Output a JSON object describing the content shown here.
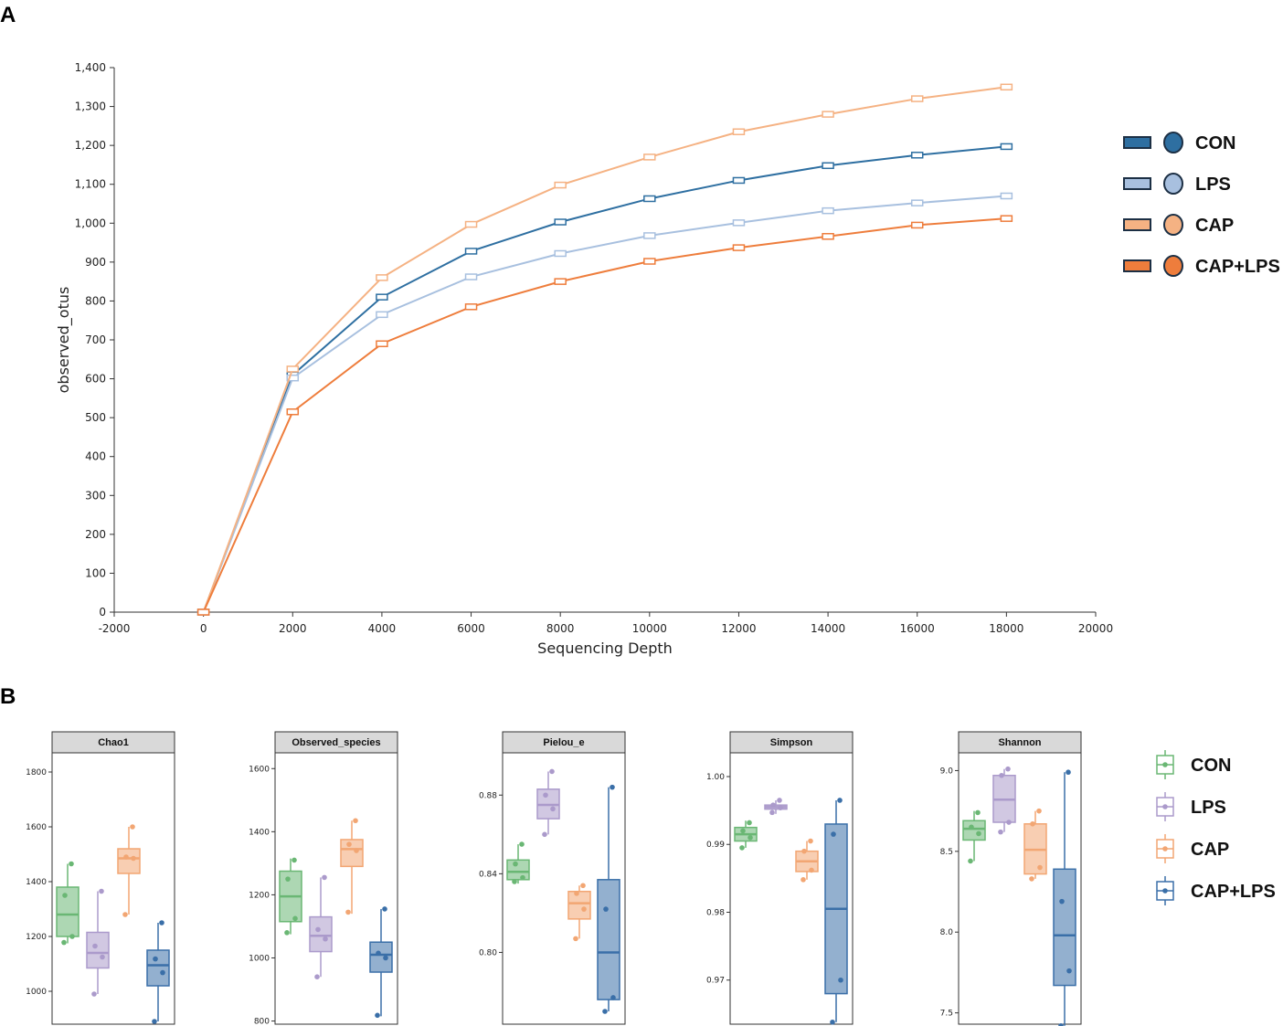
{
  "panel_a_label": "A",
  "panel_b_label": "B",
  "colors": {
    "CON": "#2e6fa1",
    "LPS": "#a8c0df",
    "CAP": "#f5b283",
    "CAP+LPS": "#ee7d3c"
  },
  "box_colors": {
    "CON": "#6ab774",
    "LPS": "#ab9acb",
    "CAP": "#f2a673",
    "CAP+LPS": "#3a6fa8"
  },
  "chart_data": [
    {
      "type": "line",
      "title": "",
      "xlabel": "Sequencing Depth",
      "ylabel": "observed_otus",
      "xlim": [
        -2000,
        20000
      ],
      "ylim": [
        0,
        1400
      ],
      "x_ticks": [
        -2000,
        0,
        2000,
        4000,
        6000,
        8000,
        10000,
        12000,
        14000,
        16000,
        18000,
        20000
      ],
      "x_tick_labels": [
        "-2000",
        "0",
        "2000",
        "4000",
        "6000",
        "8000",
        "10000",
        "12000",
        "14000",
        "16000",
        "18000",
        "20000"
      ],
      "y_ticks": [
        0,
        100,
        200,
        300,
        400,
        500,
        600,
        700,
        800,
        900,
        1000,
        1100,
        1200,
        1300,
        1400
      ],
      "y_tick_labels": [
        "0",
        "100",
        "200",
        "300",
        "400",
        "500",
        "600",
        "700",
        "800",
        "900",
        "1,000",
        "1,100",
        "1,200",
        "1,300",
        "1,400"
      ],
      "x": [
        0,
        2000,
        4000,
        6000,
        8000,
        10000,
        12000,
        14000,
        16000,
        18000
      ],
      "series": [
        {
          "name": "CON",
          "values": [
            0,
            610,
            810,
            928,
            1003,
            1063,
            1110,
            1148,
            1175,
            1197
          ]
        },
        {
          "name": "LPS",
          "values": [
            0,
            602,
            765,
            862,
            922,
            968,
            1001,
            1032,
            1052,
            1070
          ]
        },
        {
          "name": "CAP",
          "values": [
            0,
            625,
            860,
            997,
            1098,
            1170,
            1235,
            1280,
            1320,
            1350
          ]
        },
        {
          "name": "CAP+LPS",
          "values": [
            0,
            515,
            690,
            785,
            850,
            902,
            937,
            966,
            995,
            1012
          ]
        }
      ],
      "legend": [
        "CON",
        "LPS",
        "CAP",
        "CAP+LPS"
      ],
      "legend_position": "right"
    },
    {
      "type": "box",
      "facets": [
        {
          "title": "Chao1",
          "ylim": [
            880,
            1870
          ],
          "y_ticks": [
            1000,
            1200,
            1400,
            1600,
            1800
          ],
          "y_tick_labels": [
            "1000",
            "1200",
            "1400",
            "1600",
            "1800"
          ],
          "groups": [
            {
              "name": "CON",
              "min": 1175,
              "q1": 1200,
              "median": 1280,
              "q3": 1380,
              "max": 1465,
              "points": [
                1465,
                1350,
                1200,
                1178
              ]
            },
            {
              "name": "LPS",
              "min": 990,
              "q1": 1085,
              "median": 1140,
              "q3": 1215,
              "max": 1365,
              "points": [
                1365,
                1165,
                1125,
                990
              ]
            },
            {
              "name": "CAP",
              "min": 1280,
              "q1": 1430,
              "median": 1485,
              "q3": 1520,
              "max": 1600,
              "points": [
                1600,
                1490,
                1485,
                1280
              ]
            },
            {
              "name": "CAP+LPS",
              "min": 890,
              "q1": 1020,
              "median": 1095,
              "q3": 1150,
              "max": 1250,
              "points": [
                1250,
                1118,
                1068,
                890
              ]
            }
          ]
        },
        {
          "title": "Observed_species",
          "ylim": [
            790,
            1650
          ],
          "y_ticks": [
            800,
            1000,
            1200,
            1400,
            1600
          ],
          "y_tick_labels": [
            "800",
            "1000",
            "1200",
            "1400",
            "1600"
          ],
          "groups": [
            {
              "name": "CON",
              "min": 1075,
              "q1": 1115,
              "median": 1195,
              "q3": 1275,
              "max": 1315,
              "points": [
                1310,
                1250,
                1125,
                1080
              ]
            },
            {
              "name": "LPS",
              "min": 940,
              "q1": 1020,
              "median": 1070,
              "q3": 1130,
              "max": 1255,
              "points": [
                1255,
                1090,
                1060,
                940
              ]
            },
            {
              "name": "CAP",
              "min": 1140,
              "q1": 1290,
              "median": 1345,
              "q3": 1375,
              "max": 1435,
              "points": [
                1435,
                1360,
                1340,
                1145
              ]
            },
            {
              "name": "CAP+LPS",
              "min": 815,
              "q1": 955,
              "median": 1010,
              "q3": 1050,
              "max": 1155,
              "points": [
                1155,
                1015,
                1000,
                818
              ]
            }
          ]
        },
        {
          "title": "Pielou_e",
          "ylim": [
            0.7635,
            0.9015
          ],
          "y_ticks": [
            0.8,
            0.84,
            0.88
          ],
          "y_tick_labels": [
            "0.80",
            "0.84",
            "0.88"
          ],
          "groups": [
            {
              "name": "CON",
              "min": 0.835,
              "q1": 0.837,
              "median": 0.841,
              "q3": 0.847,
              "max": 0.855,
              "points": [
                0.855,
                0.845,
                0.838,
                0.836
              ]
            },
            {
              "name": "LPS",
              "min": 0.86,
              "q1": 0.868,
              "median": 0.875,
              "q3": 0.883,
              "max": 0.892,
              "points": [
                0.892,
                0.88,
                0.873,
                0.86
              ]
            },
            {
              "name": "CAP",
              "min": 0.807,
              "q1": 0.817,
              "median": 0.825,
              "q3": 0.831,
              "max": 0.834,
              "points": [
                0.834,
                0.83,
                0.822,
                0.807
              ]
            },
            {
              "name": "CAP+LPS",
              "min": 0.77,
              "q1": 0.776,
              "median": 0.8,
              "q3": 0.837,
              "max": 0.884,
              "points": [
                0.884,
                0.822,
                0.777,
                0.77
              ]
            }
          ]
        },
        {
          "title": "Simpson",
          "ylim": [
            0.9635,
            1.0035
          ],
          "y_ticks": [
            0.97,
            0.98,
            0.99,
            1.0
          ],
          "y_tick_labels": [
            "0.97",
            "0.98",
            "0.99",
            "1.00"
          ],
          "groups": [
            {
              "name": "CON",
              "min": 0.9895,
              "q1": 0.9905,
              "median": 0.9915,
              "q3": 0.9925,
              "max": 0.9935,
              "points": [
                0.9932,
                0.992,
                0.991,
                0.9895
              ]
            },
            {
              "name": "LPS",
              "min": 0.9945,
              "q1": 0.9952,
              "median": 0.9955,
              "q3": 0.9958,
              "max": 0.9965,
              "points": [
                0.9965,
                0.9958,
                0.9954,
                0.9947
              ]
            },
            {
              "name": "CAP",
              "min": 0.9848,
              "q1": 0.986,
              "median": 0.9875,
              "q3": 0.989,
              "max": 0.9905,
              "points": [
                0.9905,
                0.989,
                0.9862,
                0.9848
              ]
            },
            {
              "name": "CAP+LPS",
              "min": 0.9638,
              "q1": 0.968,
              "median": 0.9805,
              "q3": 0.993,
              "max": 0.9965,
              "points": [
                0.9965,
                0.9915,
                0.97,
                0.9638
              ]
            }
          ]
        },
        {
          "title": "Shannon",
          "ylim": [
            7.43,
            9.11
          ],
          "y_ticks": [
            7.5,
            8.0,
            8.5,
            9.0
          ],
          "y_tick_labels": [
            "7.5",
            "8.0",
            "8.5",
            "9.0"
          ],
          "groups": [
            {
              "name": "CON",
              "min": 8.44,
              "q1": 8.57,
              "median": 8.64,
              "q3": 8.69,
              "max": 8.75,
              "points": [
                8.74,
                8.65,
                8.61,
                8.44
              ]
            },
            {
              "name": "LPS",
              "min": 8.62,
              "q1": 8.68,
              "median": 8.82,
              "q3": 8.97,
              "max": 9.01,
              "points": [
                9.01,
                8.97,
                8.68,
                8.62
              ]
            },
            {
              "name": "CAP",
              "min": 8.33,
              "q1": 8.36,
              "median": 8.51,
              "q3": 8.67,
              "max": 8.75,
              "points": [
                8.75,
                8.67,
                8.4,
                8.33
              ]
            },
            {
              "name": "CAP+LPS",
              "min": 7.42,
              "q1": 7.67,
              "median": 7.98,
              "q3": 8.39,
              "max": 8.99,
              "points": [
                8.99,
                8.19,
                7.76,
                7.42
              ]
            }
          ]
        }
      ],
      "legend": [
        "CON",
        "LPS",
        "CAP",
        "CAP+LPS"
      ],
      "legend_position": "right"
    }
  ]
}
